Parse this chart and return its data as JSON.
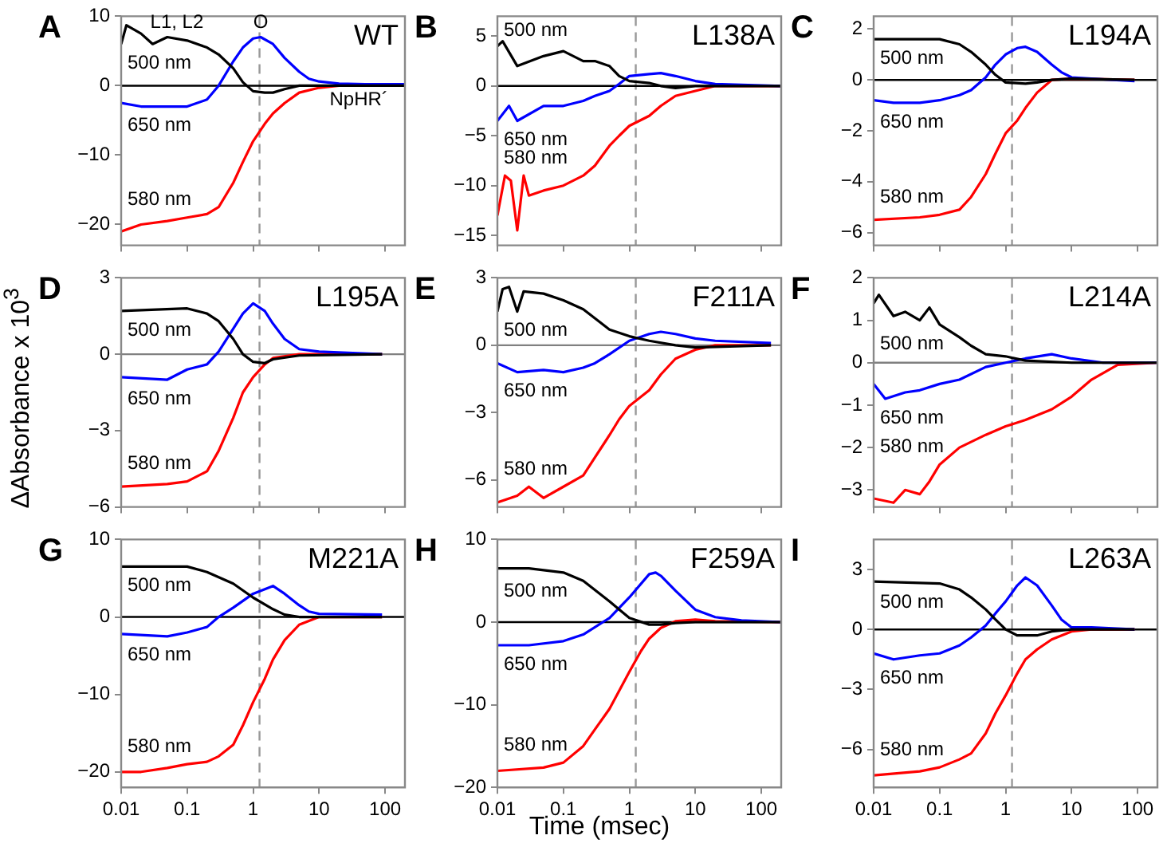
{
  "chart_data": [
    {
      "type": "line",
      "title": "WT",
      "annotations": [
        "A",
        {
          "text": "L1, L2",
          "x": 0.07,
          "y": 7
        },
        {
          "text": "O",
          "x": 1.3,
          "y": 7
        },
        {
          "text": "NpHR´",
          "x": 40,
          "y": 0
        }
      ],
      "log": "x",
      "marker": "none",
      "tick_labels": "y",
      "xlim": [
        0.01,
        200
      ],
      "ylim": [
        -23,
        10
      ],
      "xticks": [
        0.01,
        0.1,
        1,
        10,
        100
      ],
      "yticks": [
        -20,
        -10,
        0,
        10
      ],
      "ref_lines": [
        {
          "axis": "x",
          "value": 1.25,
          "line_style": "dashed",
          "color": "#999999"
        },
        {
          "axis": "y",
          "value": 0,
          "color": "#000000"
        }
      ],
      "series": [
        {
          "name": "500 nm",
          "color": "#000000",
          "x": [
            0.01,
            0.012,
            0.02,
            0.03,
            0.05,
            0.1,
            0.2,
            0.3,
            0.5,
            0.7,
            1,
            1.5,
            2,
            3,
            5,
            10,
            200
          ],
          "values": [
            6,
            8.7,
            7.5,
            6,
            7,
            6.5,
            5.5,
            4.5,
            2.5,
            0.5,
            -0.8,
            -1,
            -1,
            -0.5,
            0,
            0,
            0
          ]
        },
        {
          "name": "650 nm",
          "color": "#0000ff",
          "x": [
            0.01,
            0.02,
            0.05,
            0.1,
            0.2,
            0.3,
            0.5,
            0.7,
            1,
            1.3,
            2,
            3,
            5,
            7,
            10,
            20,
            50,
            200
          ],
          "values": [
            -2.5,
            -3,
            -3,
            -3,
            -2,
            0,
            3.5,
            5.5,
            6.8,
            7,
            6,
            4,
            2,
            1,
            0.6,
            0.3,
            0.2,
            0.2
          ]
        },
        {
          "name": "580 nm",
          "color": "#ff0000",
          "x": [
            0.01,
            0.02,
            0.05,
            0.1,
            0.2,
            0.3,
            0.5,
            0.7,
            1,
            1.5,
            2,
            3,
            5,
            10,
            20,
            200
          ],
          "values": [
            -21,
            -20,
            -19.5,
            -19,
            -18.5,
            -17.5,
            -14,
            -11,
            -8,
            -5.5,
            -4,
            -2.5,
            -1,
            -0.3,
            0,
            0
          ]
        }
      ]
    },
    {
      "type": "line",
      "title": "L138A",
      "annotations": [
        "B"
      ],
      "log": "x",
      "marker": "none",
      "tick_labels": "y",
      "xlim": [
        0.01,
        200
      ],
      "ylim": [
        -16,
        7
      ],
      "xticks": [
        0.01,
        0.1,
        1,
        10,
        100
      ],
      "yticks": [
        -15,
        -10,
        -5,
        0,
        5
      ],
      "ref_lines": [
        {
          "axis": "x",
          "value": 1.25,
          "line_style": "dashed",
          "color": "#999999"
        },
        {
          "axis": "y",
          "value": 0,
          "color": "#000000"
        }
      ],
      "series": [
        {
          "name": "500 nm",
          "color": "#000000",
          "x": [
            0.01,
            0.012,
            0.02,
            0.05,
            0.1,
            0.2,
            0.3,
            0.5,
            0.7,
            1,
            2,
            3,
            5,
            10,
            200
          ],
          "values": [
            4,
            4.5,
            2,
            3,
            3.5,
            2.5,
            2.5,
            2,
            1,
            0.5,
            0.3,
            0,
            -0.2,
            0,
            0
          ]
        },
        {
          "name": "650 nm",
          "color": "#0000ff",
          "x": [
            0.01,
            0.015,
            0.02,
            0.05,
            0.1,
            0.2,
            0.3,
            0.5,
            0.7,
            1,
            2,
            3,
            5,
            10,
            20,
            200
          ],
          "values": [
            -3.5,
            -2,
            -3.5,
            -2,
            -2,
            -1.5,
            -1,
            -0.5,
            0.2,
            1,
            1.2,
            1.3,
            1,
            0.5,
            0.2,
            0
          ]
        },
        {
          "name": "580 nm",
          "color": "#ff0000",
          "x": [
            0.01,
            0.013,
            0.016,
            0.02,
            0.025,
            0.03,
            0.05,
            0.1,
            0.2,
            0.3,
            0.5,
            0.7,
            1,
            2,
            3,
            5,
            10,
            20,
            200
          ],
          "values": [
            -13,
            -9,
            -9.5,
            -14.5,
            -9,
            -11,
            -10.5,
            -10,
            -9,
            -8,
            -6,
            -5,
            -4,
            -3,
            -2,
            -1,
            -0.5,
            0,
            0
          ]
        }
      ]
    },
    {
      "type": "line",
      "title": "L194A",
      "annotations": [
        "C"
      ],
      "log": "x",
      "marker": "none",
      "tick_labels": "y",
      "xlim": [
        0.01,
        200
      ],
      "ylim": [
        -6.5,
        2.5
      ],
      "xticks": [
        0.01,
        0.1,
        1,
        10,
        100
      ],
      "yticks": [
        -6,
        -4,
        -2,
        0,
        2
      ],
      "ref_lines": [
        {
          "axis": "x",
          "value": 1.25,
          "line_style": "dashed",
          "color": "#999999"
        },
        {
          "axis": "y",
          "value": 0,
          "color": "#000000"
        }
      ],
      "series": [
        {
          "name": "500 nm",
          "color": "#000000",
          "x": [
            0.01,
            0.1,
            0.2,
            0.3,
            0.5,
            0.7,
            1,
            2,
            3,
            5,
            10,
            90
          ],
          "values": [
            1.6,
            1.6,
            1.4,
            1.1,
            0.6,
            0.2,
            -0.1,
            -0.15,
            -0.1,
            0,
            0.05,
            0
          ]
        },
        {
          "name": "650 nm",
          "color": "#0000ff",
          "x": [
            0.01,
            0.02,
            0.05,
            0.1,
            0.2,
            0.3,
            0.5,
            0.7,
            1,
            1.5,
            2,
            3,
            5,
            7,
            10,
            20,
            90
          ],
          "values": [
            -0.8,
            -0.9,
            -0.9,
            -0.8,
            -0.6,
            -0.4,
            0.1,
            0.6,
            1,
            1.25,
            1.3,
            1.1,
            0.6,
            0.3,
            0.1,
            0.05,
            -0.05
          ]
        },
        {
          "name": "580 nm",
          "color": "#ff0000",
          "x": [
            0.01,
            0.05,
            0.1,
            0.2,
            0.3,
            0.5,
            0.7,
            1,
            1.5,
            2,
            3,
            5,
            10,
            90
          ],
          "values": [
            -5.5,
            -5.4,
            -5.3,
            -5.1,
            -4.6,
            -3.7,
            -2.9,
            -2.1,
            -1.6,
            -1.1,
            -0.5,
            0,
            0.05,
            0
          ]
        }
      ]
    },
    {
      "type": "line",
      "title": "L195A",
      "ylabel": "ΔAbsorbance x 10$^{3}$",
      "annotations": [
        "D"
      ],
      "log": "x",
      "marker": "none",
      "tick_labels": "y",
      "xlim": [
        0.01,
        200
      ],
      "ylim": [
        -6,
        3
      ],
      "xticks": [
        0.01,
        0.1,
        1,
        10,
        100
      ],
      "yticks": [
        -6,
        -3,
        0,
        3
      ],
      "ref_lines": [
        {
          "axis": "x",
          "value": 1.25,
          "line_style": "dashed",
          "color": "#999999"
        },
        {
          "axis": "y",
          "value": 0,
          "color": "#808080"
        }
      ],
      "series": [
        {
          "name": "500 nm",
          "color": "#000000",
          "x": [
            0.01,
            0.1,
            0.2,
            0.3,
            0.5,
            0.7,
            1,
            1.5,
            2,
            5,
            90
          ],
          "values": [
            1.7,
            1.8,
            1.6,
            1.3,
            0.6,
            0,
            -0.3,
            -0.35,
            -0.2,
            -0.05,
            0
          ]
        },
        {
          "name": "650 nm",
          "color": "#0000ff",
          "x": [
            0.01,
            0.05,
            0.1,
            0.2,
            0.3,
            0.5,
            0.7,
            1,
            1.5,
            2,
            3,
            5,
            10,
            90
          ],
          "values": [
            -0.9,
            -1,
            -0.6,
            -0.4,
            0.1,
            1,
            1.6,
            2,
            1.7,
            1.2,
            0.6,
            0.2,
            0.1,
            0
          ]
        },
        {
          "name": "580 nm",
          "color": "#ff0000",
          "x": [
            0.01,
            0.05,
            0.1,
            0.2,
            0.3,
            0.5,
            0.7,
            1,
            1.5,
            2,
            5,
            90
          ],
          "values": [
            -5.2,
            -5.1,
            -5,
            -4.6,
            -3.8,
            -2.5,
            -1.5,
            -0.9,
            -0.4,
            -0.15,
            0,
            0
          ]
        }
      ]
    },
    {
      "type": "line",
      "title": "F211A",
      "annotations": [
        "E"
      ],
      "log": "x",
      "marker": "none",
      "tick_labels": "y",
      "xlim": [
        0.01,
        200
      ],
      "ylim": [
        -7.2,
        3
      ],
      "xticks": [
        0.01,
        0.1,
        1,
        10,
        100
      ],
      "yticks": [
        -6,
        -3,
        0,
        3
      ],
      "ref_lines": [
        {
          "axis": "x",
          "value": 1.25,
          "line_style": "dashed",
          "color": "#999999"
        },
        {
          "axis": "y",
          "value": 0,
          "color": "#808080"
        }
      ],
      "series": [
        {
          "name": "500 nm",
          "color": "#000000",
          "x": [
            0.01,
            0.012,
            0.015,
            0.02,
            0.025,
            0.05,
            0.1,
            0.2,
            0.3,
            0.5,
            1,
            2,
            5,
            10,
            140
          ],
          "values": [
            1.5,
            2.5,
            2.6,
            1.5,
            2.4,
            2.3,
            2,
            1.6,
            1.2,
            0.7,
            0.4,
            0.2,
            0,
            -0.1,
            0
          ]
        },
        {
          "name": "650 nm",
          "color": "#0000ff",
          "x": [
            0.01,
            0.02,
            0.05,
            0.1,
            0.2,
            0.3,
            0.5,
            1,
            2,
            3,
            5,
            10,
            20,
            140
          ],
          "values": [
            -0.8,
            -1.2,
            -1.1,
            -1.2,
            -1,
            -0.8,
            -0.4,
            0.2,
            0.5,
            0.6,
            0.5,
            0.3,
            0.2,
            0.1
          ]
        },
        {
          "name": "580 nm",
          "color": "#ff0000",
          "x": [
            0.01,
            0.02,
            0.03,
            0.05,
            0.1,
            0.2,
            0.3,
            0.5,
            0.7,
            1,
            2,
            3,
            5,
            10,
            20,
            140
          ],
          "values": [
            -7,
            -6.7,
            -6.3,
            -6.8,
            -6.3,
            -5.8,
            -5,
            -4,
            -3.3,
            -2.7,
            -2,
            -1.3,
            -0.6,
            -0.2,
            0,
            0
          ]
        }
      ]
    },
    {
      "type": "line",
      "title": "L214A",
      "annotations": [
        "F"
      ],
      "log": "x",
      "marker": "none",
      "tick_labels": "y",
      "xlim": [
        0.01,
        200
      ],
      "ylim": [
        -3.4,
        2
      ],
      "xticks": [
        0.01,
        0.1,
        1,
        10,
        100
      ],
      "yticks": [
        -3,
        -2,
        -1,
        0,
        1,
        2
      ],
      "ref_lines": [
        {
          "axis": "x",
          "value": 1.25,
          "line_style": "dashed",
          "color": "#999999"
        },
        {
          "axis": "y",
          "value": 0,
          "color": "#808080"
        }
      ],
      "series": [
        {
          "name": "500 nm",
          "color": "#000000",
          "x": [
            0.01,
            0.012,
            0.02,
            0.03,
            0.05,
            0.07,
            0.1,
            0.2,
            0.3,
            0.5,
            1,
            2,
            10,
            200
          ],
          "values": [
            1.4,
            1.6,
            1.1,
            1.2,
            1,
            1.3,
            0.9,
            0.6,
            0.4,
            0.2,
            0.15,
            0.05,
            0,
            0
          ]
        },
        {
          "name": "650 nm",
          "color": "#0000ff",
          "x": [
            0.01,
            0.015,
            0.03,
            0.05,
            0.1,
            0.2,
            0.5,
            1,
            2,
            5,
            10,
            30,
            200
          ],
          "values": [
            -0.5,
            -0.85,
            -0.7,
            -0.65,
            -0.5,
            -0.4,
            -0.1,
            0,
            0.1,
            0.2,
            0.1,
            0,
            0
          ]
        },
        {
          "name": "580 nm",
          "color": "#ff0000",
          "x": [
            0.01,
            0.02,
            0.03,
            0.05,
            0.07,
            0.1,
            0.2,
            0.5,
            1,
            2,
            5,
            10,
            20,
            50,
            200
          ],
          "values": [
            -3.2,
            -3.3,
            -3,
            -3.1,
            -2.8,
            -2.4,
            -2,
            -1.7,
            -1.5,
            -1.35,
            -1.1,
            -0.8,
            -0.4,
            -0.05,
            0
          ]
        }
      ]
    },
    {
      "type": "line",
      "title": "M221A",
      "annotations": [
        "G"
      ],
      "log": "x",
      "marker": "none",
      "xlim": [
        0.01,
        200
      ],
      "ylim": [
        -22,
        10
      ],
      "xticks": [
        0.01,
        0.1,
        1,
        10,
        100
      ],
      "yticks": [
        -20,
        -10,
        0,
        10
      ],
      "ref_lines": [
        {
          "axis": "x",
          "value": 1.25,
          "line_style": "dashed",
          "color": "#999999"
        },
        {
          "axis": "y",
          "value": 0,
          "color": "#000000"
        }
      ],
      "series": [
        {
          "name": "500 nm",
          "color": "#000000",
          "x": [
            0.01,
            0.1,
            0.2,
            0.5,
            1,
            2,
            3,
            5,
            90
          ],
          "values": [
            6.5,
            6.5,
            5.8,
            4.3,
            2.5,
            1,
            0.3,
            0,
            0
          ]
        },
        {
          "name": "650 nm",
          "color": "#0000ff",
          "x": [
            0.01,
            0.05,
            0.1,
            0.2,
            0.3,
            0.5,
            1,
            2,
            3,
            5,
            7,
            10,
            90
          ],
          "values": [
            -2.2,
            -2.5,
            -2,
            -1.3,
            0,
            1.2,
            3,
            4,
            3,
            1.5,
            0.7,
            0.4,
            0.3
          ]
        },
        {
          "name": "580 nm",
          "color": "#ff0000",
          "x": [
            0.01,
            0.02,
            0.05,
            0.1,
            0.2,
            0.3,
            0.5,
            0.7,
            1,
            1.5,
            2,
            3,
            5,
            10,
            90
          ],
          "values": [
            -20,
            -20,
            -19.5,
            -19,
            -18.7,
            -18,
            -16.5,
            -14,
            -11,
            -8,
            -5.5,
            -3,
            -1,
            0,
            0
          ]
        }
      ]
    },
    {
      "type": "line",
      "title": "F259A",
      "xlabel": "Time (msec)",
      "annotations": [
        "H"
      ],
      "log": "x",
      "marker": "none",
      "xlim": [
        0.01,
        200
      ],
      "ylim": [
        -20,
        10
      ],
      "xticks": [
        0.01,
        0.1,
        1,
        10,
        100
      ],
      "yticks": [
        -20,
        -10,
        0,
        10
      ],
      "ref_lines": [
        {
          "axis": "x",
          "value": 1.25,
          "line_style": "dashed",
          "color": "#999999"
        },
        {
          "axis": "y",
          "value": 0,
          "color": "#000000"
        }
      ],
      "series": [
        {
          "name": "500 nm",
          "color": "#000000",
          "x": [
            0.01,
            0.03,
            0.1,
            0.2,
            0.5,
            1,
            2,
            3,
            5,
            10,
            200
          ],
          "values": [
            6.5,
            6.5,
            6,
            5,
            2.5,
            0.5,
            -0.3,
            -0.3,
            -0.1,
            0,
            0
          ]
        },
        {
          "name": "650 nm",
          "color": "#0000ff",
          "x": [
            0.01,
            0.03,
            0.1,
            0.2,
            0.5,
            1,
            2,
            2.5,
            3,
            5,
            10,
            20,
            50,
            200
          ],
          "values": [
            -2.8,
            -2.8,
            -2.3,
            -1.5,
            0.5,
            3,
            5.8,
            6,
            5.6,
            3.8,
            1.5,
            0.6,
            0.2,
            0
          ]
        },
        {
          "name": "580 nm",
          "color": "#ff0000",
          "x": [
            0.01,
            0.05,
            0.1,
            0.2,
            0.3,
            0.5,
            1,
            1.5,
            2,
            3,
            5,
            10,
            20,
            200
          ],
          "values": [
            -18,
            -17.6,
            -17,
            -15,
            -13,
            -10.5,
            -6,
            -3.5,
            -2,
            -0.7,
            0.1,
            0.3,
            0.1,
            0
          ]
        }
      ]
    },
    {
      "type": "line",
      "title": "L263A",
      "annotations": [
        "I"
      ],
      "log": "x",
      "marker": "none",
      "xlim": [
        0.01,
        200
      ],
      "ylim": [
        -7.9,
        4.5
      ],
      "xticks": [
        0.01,
        0.1,
        1,
        10,
        100
      ],
      "yticks": [
        -6,
        -3,
        0,
        3
      ],
      "ref_lines": [
        {
          "axis": "x",
          "value": 1.25,
          "line_style": "dashed",
          "color": "#999999"
        },
        {
          "axis": "y",
          "value": 0,
          "color": "#000000"
        }
      ],
      "series": [
        {
          "name": "500 nm",
          "color": "#000000",
          "x": [
            0.01,
            0.1,
            0.2,
            0.3,
            0.5,
            0.7,
            1,
            1.5,
            3,
            5,
            10,
            90
          ],
          "values": [
            2.4,
            2.3,
            2,
            1.6,
            1,
            0.5,
            0,
            -0.3,
            -0.3,
            -0.1,
            0,
            0
          ]
        },
        {
          "name": "650 nm",
          "color": "#0000ff",
          "x": [
            0.01,
            0.02,
            0.05,
            0.1,
            0.2,
            0.3,
            0.5,
            0.7,
            1,
            1.5,
            2,
            3,
            5,
            7,
            10,
            20,
            90
          ],
          "values": [
            -1.2,
            -1.5,
            -1.3,
            -1.2,
            -0.8,
            -0.4,
            0.2,
            0.8,
            1.4,
            2.2,
            2.6,
            2.2,
            1.2,
            0.5,
            0.1,
            0.1,
            0
          ]
        },
        {
          "name": "580 nm",
          "color": "#ff0000",
          "x": [
            0.01,
            0.05,
            0.1,
            0.2,
            0.3,
            0.5,
            0.7,
            1,
            1.5,
            2,
            3,
            5,
            10,
            20,
            90
          ],
          "values": [
            -7.3,
            -7.1,
            -6.9,
            -6.5,
            -6.2,
            -5.2,
            -4.2,
            -3.3,
            -2.2,
            -1.5,
            -1,
            -0.5,
            -0.1,
            0,
            0
          ]
        }
      ]
    }
  ]
}
